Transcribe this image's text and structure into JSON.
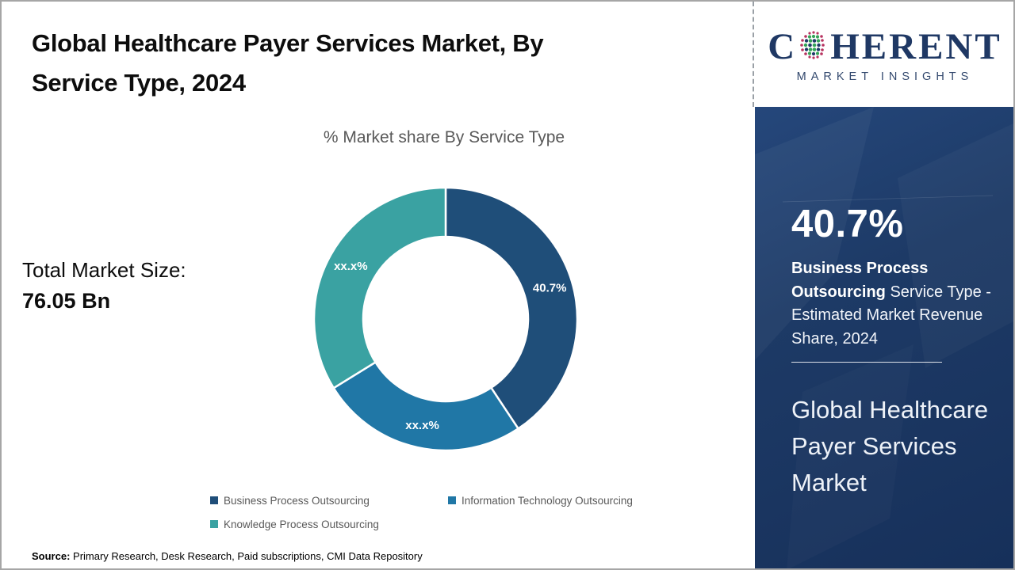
{
  "header": {
    "title": "Global Healthcare Payer Services Market, By\nService Type, 2024"
  },
  "logo": {
    "letter_c": "C",
    "letters_rest": "HERENT",
    "subtitle": "MARKET INSIGHTS",
    "brand_color": "#1f3864",
    "globe_icon": "dotted-globe-icon"
  },
  "left": {
    "total_label": "Total Market Size:",
    "total_value": "76.05 Bn",
    "source_label": "Source:",
    "source_text": " Primary Research, Desk Research, Paid subscriptions, CMI Data Repository"
  },
  "chart_data": {
    "type": "pie",
    "donut": true,
    "title": "% Market share By Service Type",
    "categories": [
      "Business Process Outsourcing",
      "Information Technology Outsourcing",
      "Knowledge Process Outsourcing"
    ],
    "values": [
      40.7,
      25.5,
      33.8
    ],
    "labels": [
      "40.7%",
      "xx.x%",
      "xx.x%"
    ],
    "colors": [
      "#1f4e79",
      "#2077a6",
      "#3aa2a2"
    ],
    "legend_position": "bottom",
    "label_color": "#ffffff"
  },
  "panel": {
    "stat_value": "40.7%",
    "stat_label_bold": "Business Process Outsourcing",
    "stat_label_rest": " Service Type - Estimated Market Revenue Share, 2024",
    "footer_title": "Global Healthcare Payer Services Market",
    "bg_color": "#1d3a66"
  }
}
